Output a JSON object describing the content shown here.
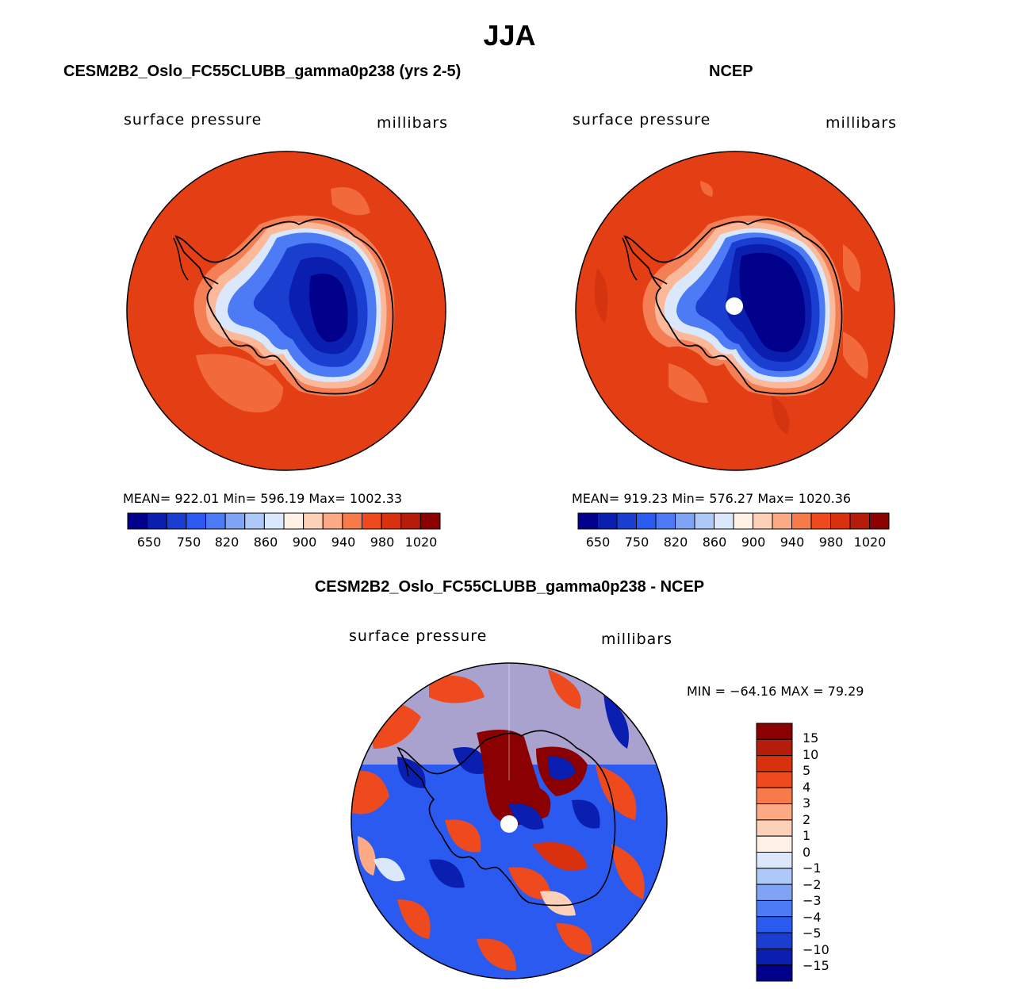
{
  "season": "JJA",
  "panels": [
    {
      "title": "CESM2B2_Oslo_FC55CLUBB_gamma0p238 (yrs 2-5)",
      "variable": "surface pressure",
      "units": "millibars",
      "stats": "MEAN= 922.01   Min= 596.19   Max= 1002.33",
      "colorbar_ticks": [
        "650",
        "750",
        "820",
        "860",
        "900",
        "940",
        "980",
        "1020"
      ]
    },
    {
      "title": "NCEP",
      "variable": "surface pressure",
      "units": "millibars",
      "stats": "MEAN= 919.23   Min= 576.27   Max= 1020.36",
      "colorbar_ticks": [
        "650",
        "750",
        "820",
        "860",
        "900",
        "940",
        "980",
        "1020"
      ]
    }
  ],
  "diff": {
    "title": "CESM2B2_Oslo_FC55CLUBB_gamma0p238 - NCEP",
    "variable": "surface pressure",
    "units": "millibars",
    "minmax": "MIN = −64.16 MAX =   79.29",
    "colorbar_ticks": [
      "15",
      "10",
      "5",
      "4",
      "3",
      "2",
      "1",
      "0",
      "−1",
      "−2",
      "−3",
      "−4",
      "−5",
      "−10",
      "−15"
    ]
  },
  "colors": {
    "full_scale": [
      "#00008b",
      "#0a1fb0",
      "#1a3fd0",
      "#2b5af0",
      "#4c7bf5",
      "#7fa3f5",
      "#aec8f7",
      "#dbe8fb",
      "#fff0e6",
      "#fdd0b8",
      "#fbaa85",
      "#f77a4a",
      "#ee4a1e",
      "#d9300e",
      "#b51c0a",
      "#8b0000"
    ],
    "diff_scale": [
      "#8b0000",
      "#b51c0a",
      "#d9300e",
      "#ee4a1e",
      "#f77a4a",
      "#fbaa85",
      "#fdd0b8",
      "#fff0e6",
      "#dbe8fb",
      "#aec8f7",
      "#7fa3f5",
      "#4c7bf5",
      "#2b5af0",
      "#1a3fd0",
      "#0a1fb0",
      "#00008b"
    ]
  }
}
